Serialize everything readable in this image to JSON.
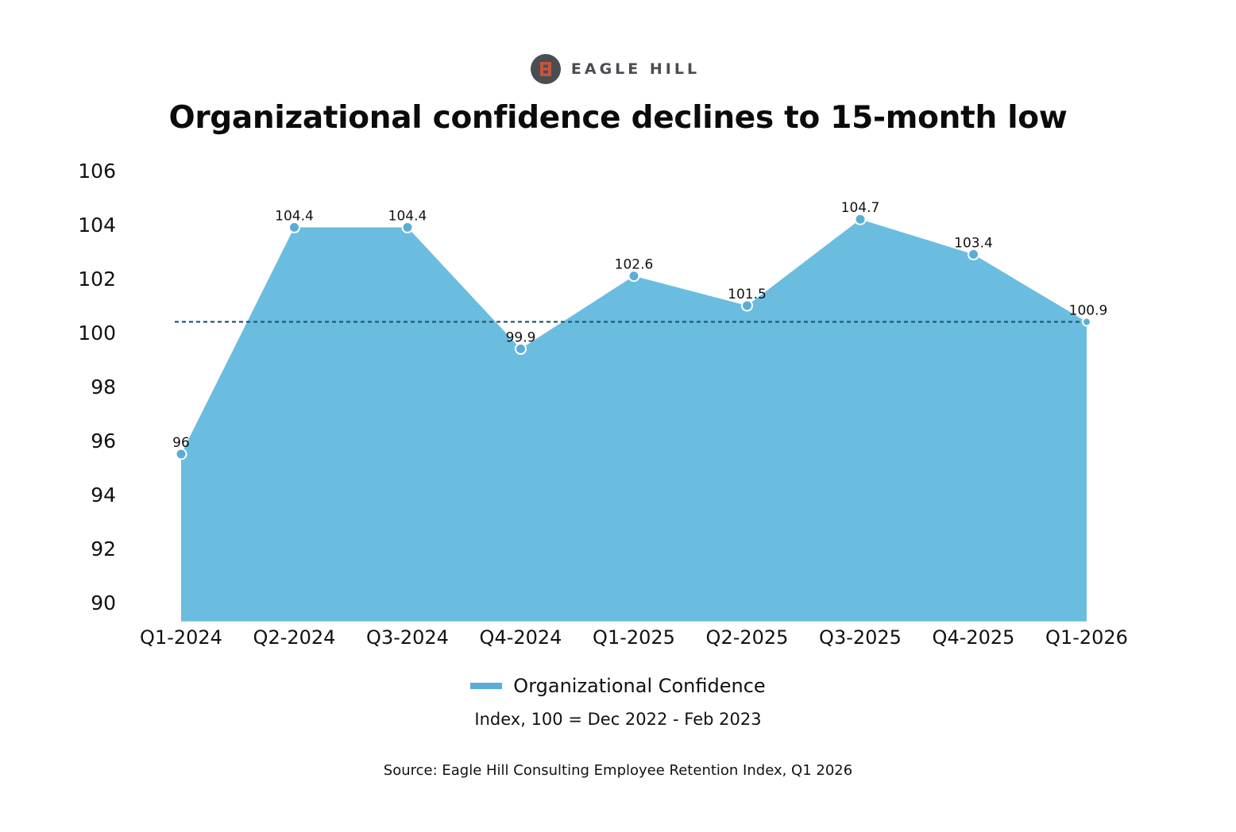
{
  "brand": {
    "name": "EAGLE HILL",
    "logo_color": "#c4553a",
    "logo_ring": "#4a4d52"
  },
  "colors": {
    "area_fill": "#6bbde0",
    "marker_fill": "#5aaed6",
    "marker_stroke": "#ffffff",
    "reference_line": "#1e5a73",
    "legend_swatch": "#5aaed6"
  },
  "chart_data": {
    "type": "area",
    "title": "Organizational confidence declines to 15-month low",
    "categories": [
      "Q1-2024",
      "Q2-2024",
      "Q3-2024",
      "Q4-2024",
      "Q1-2025",
      "Q2-2025",
      "Q3-2025",
      "Q4-2025",
      "Q1-2026"
    ],
    "series": [
      {
        "name": "Organizational Confidence",
        "values": [
          96,
          104.4,
          104.4,
          99.9,
          102.6,
          101.5,
          104.7,
          103.4,
          100.9
        ],
        "plotted_values": [
          95.5,
          103.9,
          103.9,
          99.4,
          102.1,
          101.0,
          104.2,
          102.9,
          100.4
        ],
        "labels": [
          "96",
          "104.4",
          "104.4",
          "99.9",
          "102.6",
          "101.5",
          "104.7",
          "103.4",
          "100.9"
        ]
      }
    ],
    "reference_line": {
      "value": 100.4,
      "style": "dashed"
    },
    "y_ticks": [
      106,
      104,
      102,
      100,
      98,
      96,
      94,
      92,
      90
    ],
    "ylim": [
      89.3,
      106
    ],
    "xlabel": "",
    "ylabel": "",
    "grid": false,
    "legend": "bottom-center",
    "subtitle": "Index, 100 = Dec 2022 - Feb 2023",
    "source": "Source: Eagle Hill Consulting Employee Retention Index, Q1 2026"
  }
}
